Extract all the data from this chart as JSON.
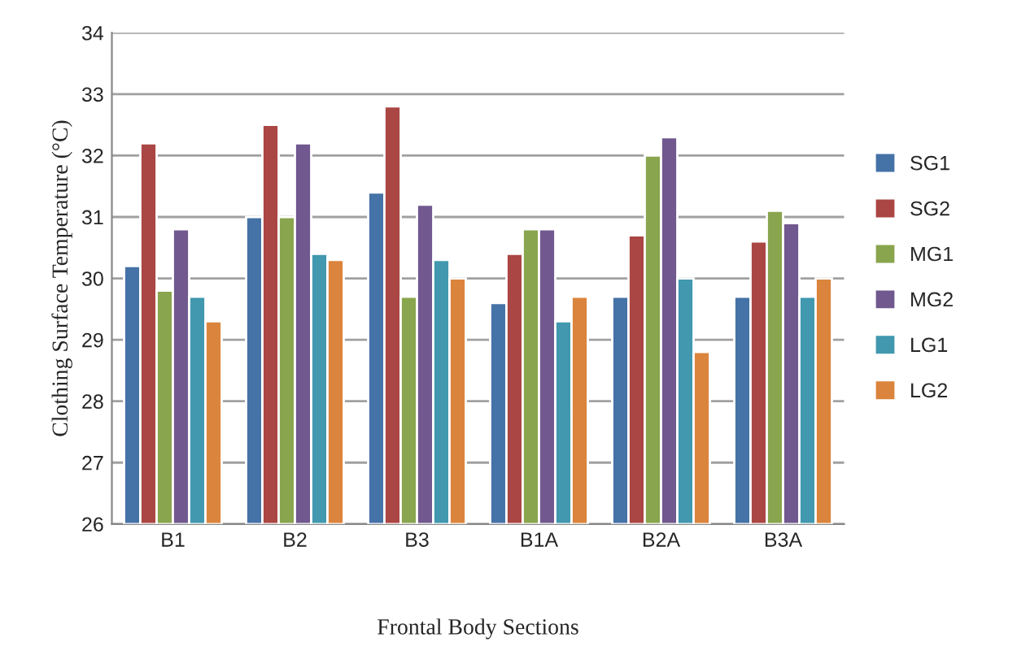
{
  "chart_data": {
    "type": "bar",
    "xlabel": "Frontal Body Sections",
    "ylabel": "Clothing Surface Temperature (°C)",
    "categories": [
      "B1",
      "B2",
      "B3",
      "B1A",
      "B2A",
      "B3A"
    ],
    "series": [
      {
        "name": "SG1",
        "color": "#4572a7",
        "values": [
          30.2,
          31.0,
          31.4,
          29.6,
          29.7,
          29.7
        ]
      },
      {
        "name": "SG2",
        "color": "#aa4643",
        "values": [
          32.2,
          32.5,
          32.8,
          30.4,
          30.7,
          30.6
        ]
      },
      {
        "name": "MG1",
        "color": "#89a54e",
        "values": [
          29.8,
          31.0,
          29.7,
          30.8,
          32.0,
          31.1
        ]
      },
      {
        "name": "MG2",
        "color": "#71588f",
        "values": [
          30.8,
          32.2,
          31.2,
          30.8,
          32.3,
          30.9
        ]
      },
      {
        "name": "LG1",
        "color": "#4198af",
        "values": [
          29.7,
          30.4,
          30.3,
          29.3,
          30.0,
          29.7
        ]
      },
      {
        "name": "LG2",
        "color": "#db843d",
        "values": [
          29.3,
          30.3,
          30.0,
          29.7,
          28.8,
          30.0
        ]
      }
    ],
    "ylim": [
      26,
      34
    ],
    "yticks": [
      26,
      27,
      28,
      29,
      30,
      31,
      32,
      33,
      34
    ],
    "grid": "y",
    "legend": "right"
  }
}
